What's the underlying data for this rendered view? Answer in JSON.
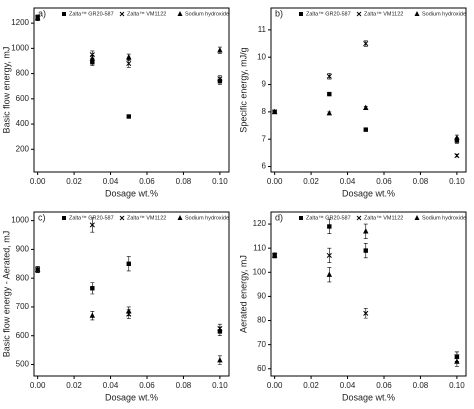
{
  "chart_data": [
    {
      "type": "scatter",
      "label": "a)",
      "xlabel": "Dosage wt.%",
      "ylabel": "Basic flow energy, mJ",
      "x": [
        0,
        0.03,
        0.05,
        0.1
      ],
      "series": [
        {
          "name": "Zalta™ GR20-587",
          "marker": "square",
          "color": "#000000",
          "values": [
            1240,
            890,
            460,
            740
          ],
          "errors": [
            20,
            25,
            10,
            25
          ]
        },
        {
          "name": "Zalta™ VM1122",
          "marker": "x",
          "color": "#000000",
          "values": [
            1245,
            950,
            880,
            760
          ],
          "errors": [
            20,
            30,
            30,
            25
          ]
        },
        {
          "name": "Sodium hydroxide",
          "marker": "triangle",
          "color": "#000000",
          "values": [
            1240,
            920,
            930,
            985
          ],
          "errors": [
            20,
            25,
            25,
            25
          ]
        }
      ],
      "xlim": [
        -0.002,
        0.105
      ],
      "ylim": [
        20,
        1320
      ],
      "xticks": [
        {
          "value": 0,
          "label": "0.00"
        },
        {
          "value": 0.02,
          "label": "0.02"
        },
        {
          "value": 0.04,
          "label": "0.04"
        },
        {
          "value": 0.06,
          "label": "0.06"
        },
        {
          "value": 0.08,
          "label": "0.08"
        },
        {
          "value": 0.1,
          "label": "0.10"
        }
      ],
      "yticks": [
        200,
        400,
        600,
        800,
        1000,
        1200
      ]
    },
    {
      "type": "scatter",
      "label": "b)",
      "xlabel": "Dosage wt.%",
      "ylabel": "Specific energy, mJ/g",
      "x": [
        0,
        0.03,
        0.05,
        0.1
      ],
      "series": [
        {
          "name": "Zalta™ GR20-587",
          "marker": "square",
          "color": "#000000",
          "values": [
            8.0,
            8.65,
            7.35,
            6.95
          ],
          "errors": [
            0.05,
            0.05,
            0.05,
            0.1
          ]
        },
        {
          "name": "Zalta™ VM1122",
          "marker": "x",
          "color": "#000000",
          "values": [
            8.0,
            9.3,
            10.5,
            6.4
          ],
          "errors": [
            0.05,
            0.1,
            0.1,
            0.05
          ]
        },
        {
          "name": "Sodium hydroxide",
          "marker": "triangle",
          "color": "#000000",
          "values": [
            8.0,
            7.95,
            8.15,
            7.05
          ],
          "errors": [
            0.05,
            0.05,
            0.05,
            0.1
          ]
        }
      ],
      "xlim": [
        -0.002,
        0.105
      ],
      "ylim": [
        5.8,
        11.8
      ],
      "xticks": [
        {
          "value": 0,
          "label": "0.00"
        },
        {
          "value": 0.02,
          "label": "0.02"
        },
        {
          "value": 0.04,
          "label": "0.04"
        },
        {
          "value": 0.06,
          "label": "0.06"
        },
        {
          "value": 0.08,
          "label": "0.08"
        },
        {
          "value": 0.1,
          "label": "0.10"
        }
      ],
      "yticks": [
        6,
        7,
        8,
        9,
        10,
        11
      ]
    },
    {
      "type": "scatter",
      "label": "c)",
      "xlabel": "Dosage wt.%",
      "ylabel": "Basic flow energy - Aerated, mJ",
      "x": [
        0,
        0.03,
        0.05,
        0.1
      ],
      "series": [
        {
          "name": "Zalta™ GR20-587",
          "marker": "square",
          "color": "#000000",
          "values": [
            830,
            765,
            850,
            615
          ],
          "errors": [
            10,
            20,
            25,
            15
          ]
        },
        {
          "name": "Zalta™ VM1122",
          "marker": "x",
          "color": "#000000",
          "values": [
            830,
            985,
            675,
            625
          ],
          "errors": [
            10,
            25,
            15,
            15
          ]
        },
        {
          "name": "Sodium hydroxide",
          "marker": "triangle",
          "color": "#000000",
          "values": [
            830,
            670,
            685,
            515
          ],
          "errors": [
            10,
            15,
            15,
            15
          ]
        }
      ],
      "xlim": [
        -0.002,
        0.105
      ],
      "ylim": [
        460,
        1030
      ],
      "xticks": [
        {
          "value": 0,
          "label": "0.00"
        },
        {
          "value": 0.02,
          "label": "0.02"
        },
        {
          "value": 0.04,
          "label": "0.04"
        },
        {
          "value": 0.06,
          "label": "0.06"
        },
        {
          "value": 0.08,
          "label": "0.08"
        },
        {
          "value": 0.1,
          "label": "0.10"
        }
      ],
      "yticks": [
        500,
        600,
        700,
        800,
        900,
        1000
      ]
    },
    {
      "type": "scatter",
      "label": "d)",
      "xlabel": "Dosage wt.%",
      "ylabel": "Aerated energy, mJ",
      "x": [
        0,
        0.03,
        0.05,
        0.1
      ],
      "series": [
        {
          "name": "Zalta™ GR20-587",
          "marker": "square",
          "color": "#000000",
          "values": [
            107,
            119,
            109,
            65
          ],
          "errors": [
            1,
            3,
            3,
            2
          ]
        },
        {
          "name": "Zalta™ VM1122",
          "marker": "x",
          "color": "#000000",
          "values": [
            107,
            107,
            83,
            65
          ],
          "errors": [
            1,
            3,
            2,
            2
          ]
        },
        {
          "name": "Sodium hydroxide",
          "marker": "triangle",
          "color": "#000000",
          "values": [
            107,
            99,
            117,
            63
          ],
          "errors": [
            1,
            3,
            3,
            2
          ]
        }
      ],
      "xlim": [
        -0.002,
        0.105
      ],
      "ylim": [
        57,
        125
      ],
      "xticks": [
        {
          "value": 0,
          "label": "0.00"
        },
        {
          "value": 0.02,
          "label": "0.02"
        },
        {
          "value": 0.04,
          "label": "0.04"
        },
        {
          "value": 0.06,
          "label": "0.06"
        },
        {
          "value": 0.08,
          "label": "0.08"
        },
        {
          "value": 0.1,
          "label": "0.10"
        }
      ],
      "yticks": [
        60,
        70,
        80,
        90,
        100,
        110,
        120
      ]
    }
  ]
}
